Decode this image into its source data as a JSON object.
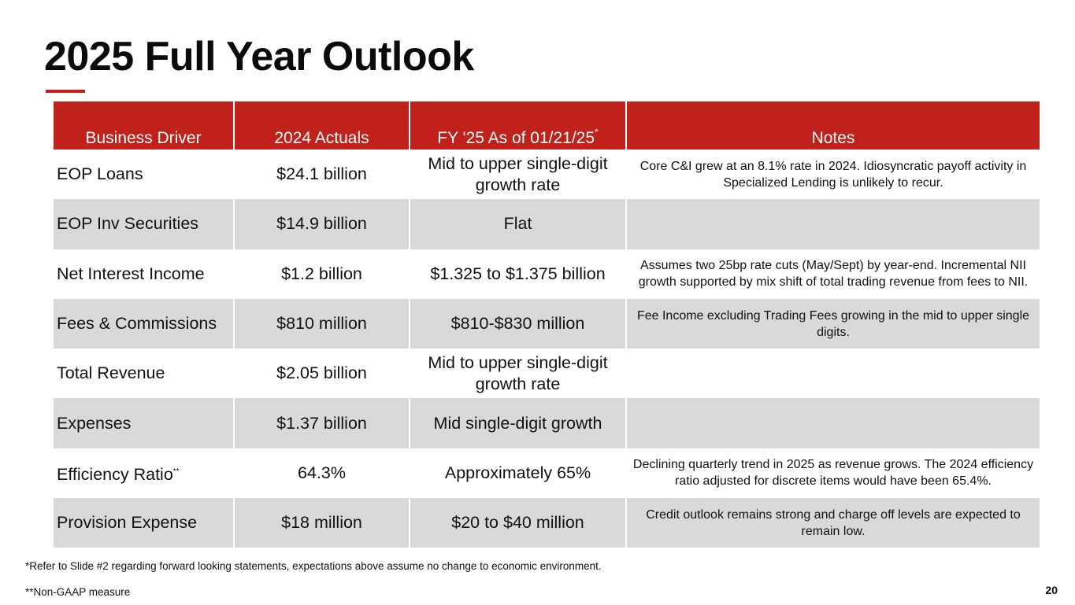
{
  "title": "2025 Full Year Outlook",
  "accent_color": "#c0211a",
  "row_shade_color": "#d9d9d9",
  "table": {
    "headers": {
      "driver": "Business Driver",
      "actuals": "2024 Actuals",
      "fy25": "FY '25 As of 01/21/25",
      "fy25_mark": "*",
      "notes": "Notes"
    },
    "rows": [
      {
        "driver": "EOP Loans",
        "driver_mark": "",
        "actual": "$24.1 billion",
        "outlook": "Mid to upper single-digit growth rate",
        "note": "Core C&I grew at an 8.1% rate in 2024. Idiosyncratic payoff activity in Specialized Lending is unlikely to recur."
      },
      {
        "driver": "EOP Inv Securities",
        "driver_mark": "",
        "actual": "$14.9 billion",
        "outlook": "Flat",
        "note": ""
      },
      {
        "driver": "Net Interest Income",
        "driver_mark": "",
        "actual": "$1.2 billion",
        "outlook": "$1.325 to $1.375 billion",
        "note": "Assumes two 25bp rate cuts (May/Sept) by year-end. Incremental NII growth supported by mix shift of total trading revenue from fees to NII."
      },
      {
        "driver": "Fees & Commissions",
        "driver_mark": "",
        "actual": "$810 million",
        "outlook": "$810-$830 million",
        "note": "Fee Income excluding Trading Fees growing in the mid to upper single digits."
      },
      {
        "driver": "Total Revenue",
        "driver_mark": "",
        "actual": "$2.05 billion",
        "outlook": "Mid to upper single-digit growth rate",
        "note": ""
      },
      {
        "driver": "Expenses",
        "driver_mark": "",
        "actual": "$1.37 billion",
        "outlook": "Mid single-digit growth",
        "note": ""
      },
      {
        "driver": "Efficiency Ratio",
        "driver_mark": "**",
        "actual": "64.3%",
        "outlook": "Approximately 65%",
        "note": "Declining quarterly trend in 2025 as revenue grows. The 2024 efficiency ratio adjusted for discrete items would have been 65.4%."
      },
      {
        "driver": "Provision Expense",
        "driver_mark": "",
        "actual": "$18 million",
        "outlook": "$20 to $40 million",
        "note": "Credit outlook remains strong and charge off levels are expected to remain low."
      }
    ]
  },
  "footnotes": {
    "forward_looking": "*Refer to Slide #2 regarding forward looking statements, expectations above assume no change to economic environment.",
    "non_gaap": "**Non-GAAP measure"
  },
  "page_number": "20"
}
